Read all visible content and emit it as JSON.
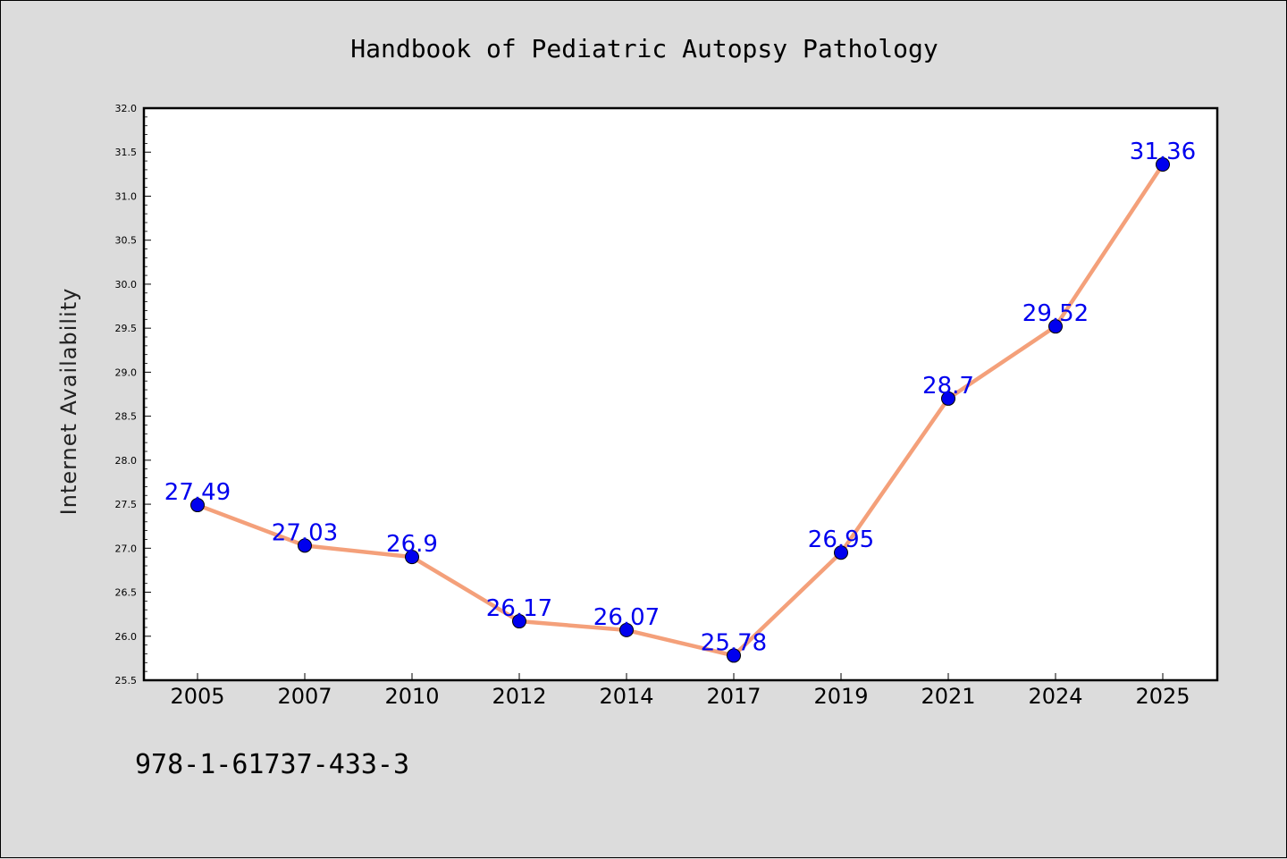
{
  "chart_data": {
    "type": "line",
    "title": "Handbook of Pediatric Autopsy Pathology",
    "xlabel": "",
    "ylabel": "Internet Availability",
    "categories": [
      "2005",
      "2007",
      "2010",
      "2012",
      "2014",
      "2017",
      "2019",
      "2021",
      "2024",
      "2025"
    ],
    "series": [
      {
        "values": [
          27.49,
          27.03,
          26.9,
          26.17,
          26.07,
          25.78,
          26.95,
          28.7,
          29.52,
          31.36
        ]
      }
    ],
    "ylim": [
      25.5,
      32.0
    ],
    "yticks": [
      "25.5",
      "26.0",
      "26.5",
      "27.0",
      "27.5",
      "28.0",
      "28.5",
      "29.0",
      "29.5",
      "30.0",
      "30.5",
      "31.0",
      "31.5",
      "32.0"
    ],
    "grid": false,
    "legend": "none",
    "colors": {
      "line": "#f4a07a",
      "marker": "#0000ee",
      "label": "#0000ee",
      "background": "#dcdcdc",
      "plot_background": "#ffffff"
    }
  },
  "footer": {
    "isbn": "978-1-61737-433-3"
  }
}
